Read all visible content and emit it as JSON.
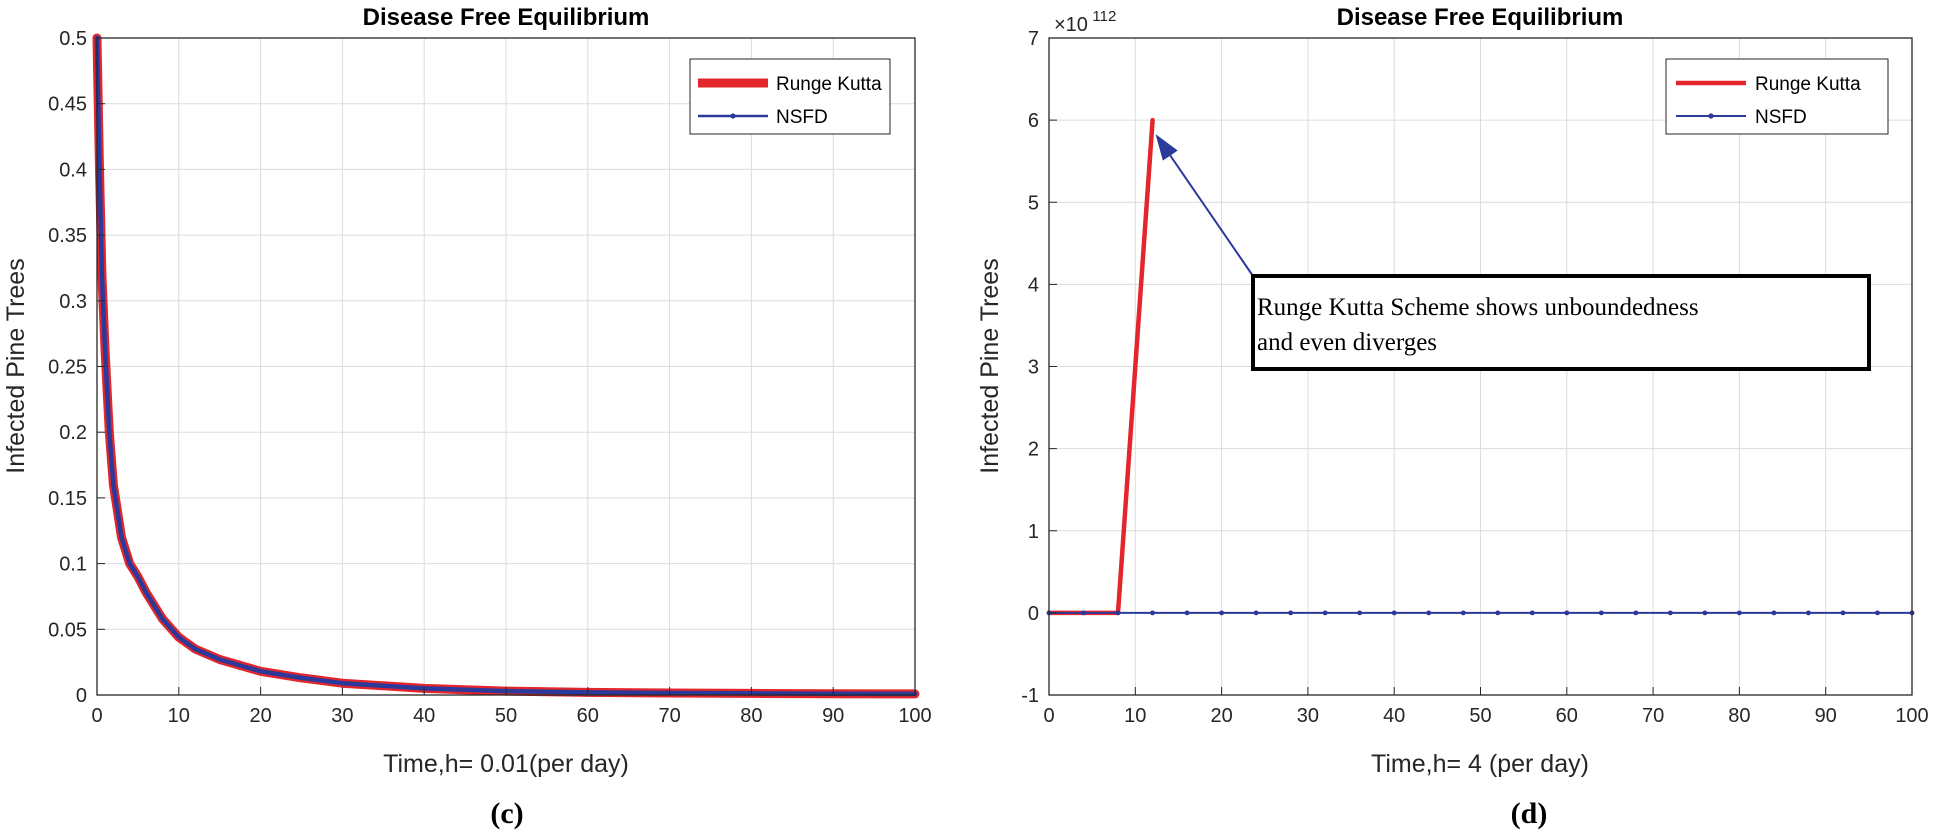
{
  "chart_data": [
    {
      "id": "c",
      "type": "line",
      "panel_label": "(c)",
      "title": "Disease Free Equilibrium",
      "xlabel": "Time,h= 0.01(per day)",
      "ylabel": "Infected Pine Trees",
      "xlim": [
        0,
        100
      ],
      "ylim": [
        0,
        0.5
      ],
      "xticks": [
        0,
        10,
        20,
        30,
        40,
        50,
        60,
        70,
        80,
        90,
        100
      ],
      "yticks": [
        0,
        0.05,
        0.1,
        0.15,
        0.2,
        0.25,
        0.3,
        0.35,
        0.4,
        0.45,
        0.5
      ],
      "grid": true,
      "legend": "top-right",
      "series": [
        {
          "name": "Runge Kutta",
          "color": "#e3262c",
          "marker": false,
          "x": [
            0,
            0.3,
            0.6,
            1,
            1.5,
            2,
            3,
            4,
            5,
            6,
            8,
            10,
            12,
            15,
            20,
            25,
            30,
            40,
            50,
            60,
            70,
            80,
            90,
            100
          ],
          "y": [
            0.5,
            0.4,
            0.32,
            0.26,
            0.2,
            0.16,
            0.12,
            0.1,
            0.09,
            0.078,
            0.058,
            0.044,
            0.035,
            0.027,
            0.018,
            0.013,
            0.009,
            0.005,
            0.003,
            0.002,
            0.0015,
            0.0012,
            0.001,
            0.0008
          ]
        },
        {
          "name": "NSFD",
          "color": "#2b3a9a",
          "marker": true,
          "x": [
            0,
            0.3,
            0.6,
            1,
            1.5,
            2,
            3,
            4,
            5,
            6,
            8,
            10,
            12,
            15,
            20,
            25,
            30,
            40,
            50,
            60,
            70,
            80,
            90,
            100
          ],
          "y": [
            0.5,
            0.4,
            0.32,
            0.26,
            0.2,
            0.16,
            0.12,
            0.1,
            0.09,
            0.078,
            0.058,
            0.044,
            0.035,
            0.027,
            0.018,
            0.013,
            0.009,
            0.005,
            0.003,
            0.002,
            0.0015,
            0.0012,
            0.001,
            0.0008
          ]
        }
      ]
    },
    {
      "id": "d",
      "type": "line",
      "panel_label": "(d)",
      "title": "Disease Free Equilibrium",
      "xlabel": "Time,h= 4 (per day)",
      "ylabel": "Infected Pine Trees",
      "y_exponent_base": "×10",
      "y_exponent": "112",
      "xlim": [
        0,
        100
      ],
      "ylim": [
        -1,
        7
      ],
      "xticks": [
        0,
        10,
        20,
        30,
        40,
        50,
        60,
        70,
        80,
        90,
        100
      ],
      "yticks": [
        -1,
        0,
        1,
        2,
        3,
        4,
        5,
        6,
        7
      ],
      "grid": true,
      "legend": "top-right",
      "annotation": {
        "text_line1": "Runge Kutta Scheme shows unboundedness",
        "text_line2": "and even diverges",
        "arrow_target": [
          12,
          6
        ]
      },
      "series": [
        {
          "name": "Runge Kutta",
          "color": "#e3262c",
          "marker": false,
          "x": [
            0,
            4,
            8,
            12
          ],
          "y": [
            0,
            0,
            0,
            6
          ]
        },
        {
          "name": "NSFD",
          "color": "#2b3a9a",
          "marker": true,
          "x": [
            0,
            4,
            8,
            12,
            16,
            20,
            24,
            28,
            32,
            36,
            40,
            44,
            48,
            52,
            56,
            60,
            64,
            68,
            72,
            76,
            80,
            84,
            88,
            92,
            96,
            100
          ],
          "y": [
            0,
            0,
            0,
            0,
            0,
            0,
            0,
            0,
            0,
            0,
            0,
            0,
            0,
            0,
            0,
            0,
            0,
            0,
            0,
            0,
            0,
            0,
            0,
            0,
            0,
            0
          ]
        }
      ]
    }
  ]
}
